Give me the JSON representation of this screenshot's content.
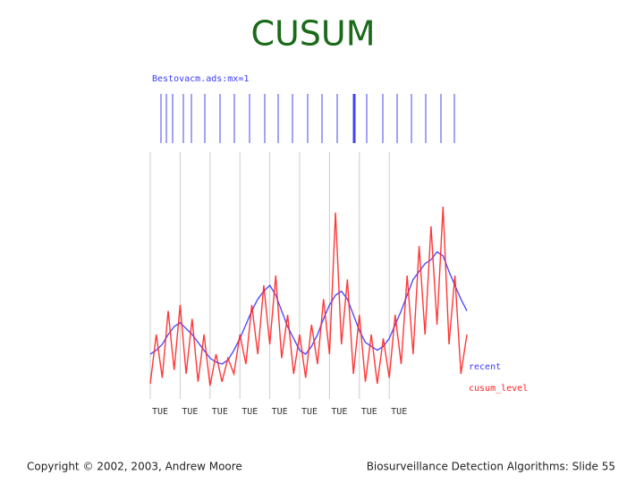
{
  "title": "CUSUM",
  "footer_left": "Copyright © 2002, 2003, Andrew Moore",
  "footer_right": "Biosurveillance Detection Algorithms: Slide 55",
  "chart_data": {
    "type": "line",
    "header_label": "Bestovacm.ads:mx=1",
    "categories": [
      "TUE",
      null,
      null,
      null,
      null,
      "TUE",
      null,
      null,
      null,
      null,
      "TUE",
      null,
      null,
      null,
      null,
      "TUE",
      null,
      null,
      null,
      null,
      "TUE",
      null,
      null,
      null,
      null,
      "TUE",
      null,
      null,
      null,
      null,
      "TUE",
      null,
      null,
      null,
      null,
      "TUE",
      null,
      null,
      null,
      null,
      "TUE",
      null,
      null,
      null,
      null,
      null,
      null,
      null,
      null,
      null,
      null,
      null,
      null,
      null
    ],
    "ylim": [
      0,
      100
    ],
    "grid": true,
    "series": [
      {
        "name": "recent",
        "color": "#3b3bff",
        "values": [
          20,
          22,
          25,
          30,
          34,
          36,
          33,
          30,
          26,
          22,
          18,
          16,
          15,
          17,
          22,
          28,
          35,
          42,
          48,
          52,
          55,
          50,
          42,
          34,
          28,
          22,
          20,
          24,
          30,
          38,
          45,
          50,
          52,
          48,
          40,
          32,
          26,
          24,
          22,
          24,
          28,
          35,
          42,
          50,
          58,
          62,
          66,
          68,
          72,
          70,
          62,
          55,
          48,
          42
        ]
      },
      {
        "name": "cusum_level",
        "color": "#ff2222",
        "values": [
          5,
          30,
          8,
          42,
          12,
          45,
          10,
          38,
          6,
          30,
          4,
          20,
          6,
          18,
          10,
          30,
          15,
          45,
          20,
          55,
          25,
          60,
          18,
          40,
          10,
          30,
          8,
          35,
          15,
          48,
          20,
          92,
          25,
          58,
          10,
          40,
          6,
          30,
          5,
          28,
          8,
          40,
          15,
          60,
          20,
          75,
          30,
          85,
          35,
          95,
          25,
          60,
          10,
          30
        ]
      }
    ]
  }
}
